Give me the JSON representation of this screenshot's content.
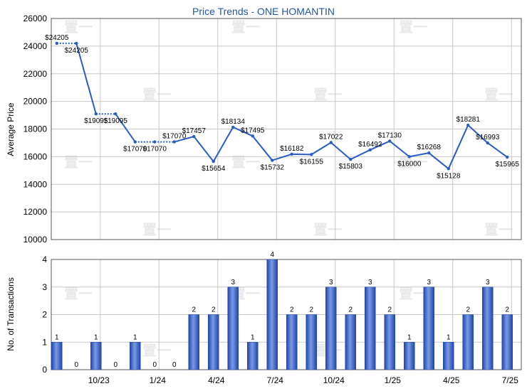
{
  "chart_data": [
    {
      "type": "line",
      "title": "Price Trends - ONE HOMANTIN",
      "ylabel": "Average Price",
      "ylim": [
        10000,
        26000
      ],
      "yticks": [
        "10000",
        "12000",
        "14000",
        "16000",
        "18000",
        "20000",
        "22000",
        "24000",
        "26000"
      ],
      "x_ticks": [
        "10/23",
        "1/24",
        "4/24",
        "7/24",
        "10/24",
        "1/25",
        "4/25",
        "7/25"
      ],
      "grid": true,
      "series_color": "#2a5cc4",
      "points": [
        {
          "value": 24205,
          "label": "$24205",
          "gap_before": false
        },
        {
          "value": 24205,
          "label": "$24205",
          "gap_before": true
        },
        {
          "value": 19095,
          "label": "$19095",
          "gap_before": false
        },
        {
          "value": 19095,
          "label": "$19095",
          "gap_before": true
        },
        {
          "value": 17070,
          "label": "$17070",
          "gap_before": false
        },
        {
          "value": 17070,
          "label": "$17070",
          "gap_before": true
        },
        {
          "value": 17070,
          "label": "$17070",
          "gap_before": true
        },
        {
          "value": 17457,
          "label": "$17457",
          "gap_before": false
        },
        {
          "value": 15654,
          "label": "$15654",
          "gap_before": false
        },
        {
          "value": 18134,
          "label": "$18134",
          "gap_before": false
        },
        {
          "value": 17495,
          "label": "$17495",
          "gap_before": false
        },
        {
          "value": 15732,
          "label": "$15732",
          "gap_before": false
        },
        {
          "value": 16182,
          "label": "$16182",
          "gap_before": false
        },
        {
          "value": 16155,
          "label": "$16155",
          "gap_before": false
        },
        {
          "value": 17022,
          "label": "$17022",
          "gap_before": false
        },
        {
          "value": 15803,
          "label": "$15803",
          "gap_before": false
        },
        {
          "value": 16492,
          "label": "$16492",
          "gap_before": false
        },
        {
          "value": 17130,
          "label": "$17130",
          "gap_before": false
        },
        {
          "value": 16000,
          "label": "$16000",
          "gap_before": false
        },
        {
          "value": 16268,
          "label": "$16268",
          "gap_before": false
        },
        {
          "value": 15128,
          "label": "$15128",
          "gap_before": false
        },
        {
          "value": 18281,
          "label": "$18281",
          "gap_before": false
        },
        {
          "value": 16993,
          "label": "$16993",
          "gap_before": false
        },
        {
          "value": 15965,
          "label": "$15965",
          "gap_before": false
        }
      ]
    },
    {
      "type": "bar",
      "ylabel": "No. of Transactions",
      "ylim": [
        0,
        4
      ],
      "yticks": [
        "0",
        "1",
        "2",
        "3",
        "4"
      ],
      "x_ticks": [
        "10/23",
        "1/24",
        "4/24",
        "7/24",
        "10/24",
        "1/25",
        "4/25",
        "7/25"
      ],
      "grid": true,
      "bar_color": "#3a67c8",
      "values": [
        1,
        0,
        1,
        0,
        1,
        0,
        0,
        2,
        2,
        3,
        1,
        4,
        2,
        2,
        3,
        2,
        3,
        2,
        1,
        3,
        1,
        2,
        3,
        2
      ]
    }
  ]
}
